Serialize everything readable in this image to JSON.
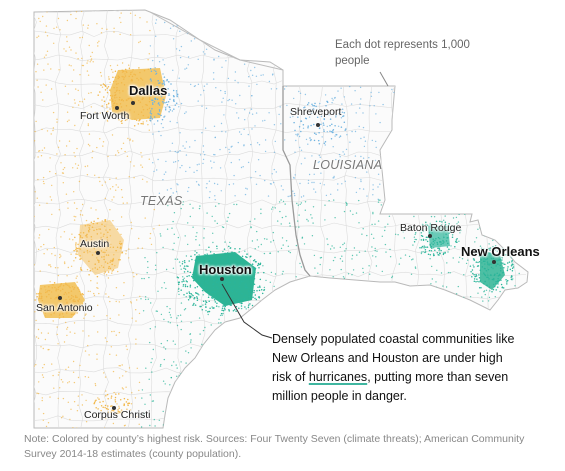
{
  "map": {
    "states": [
      {
        "name": "TEXAS"
      },
      {
        "name": "LOUISIANA"
      }
    ],
    "cities": [
      {
        "name": "Dallas",
        "size": "large"
      },
      {
        "name": "Fort Worth",
        "size": "small"
      },
      {
        "name": "Shreveport",
        "size": "small"
      },
      {
        "name": "Austin",
        "size": "small"
      },
      {
        "name": "San Antonio",
        "size": "small"
      },
      {
        "name": "Houston",
        "size": "large"
      },
      {
        "name": "Baton Rouge",
        "size": "small"
      },
      {
        "name": "New Orleans",
        "size": "large"
      },
      {
        "name": "Corpus Christi",
        "size": "small"
      }
    ],
    "legend_note": "Each dot represents 1,000 people",
    "risk_colors": {
      "heat": "#f2b84b",
      "water_stress": "#6fb3e0",
      "hurricanes": "#2bb59a"
    }
  },
  "callout": {
    "before": "Densely populated coastal communities like New Orleans and Houston are under high risk of ",
    "highlight": "hurricanes",
    "after": ", putting more than seven million people in danger."
  },
  "footnote": "Note: Colored by county’s highest risk. Sources: Four Twenty Seven (climate threats); American Community Survey 2014-18 estimates (county population)."
}
